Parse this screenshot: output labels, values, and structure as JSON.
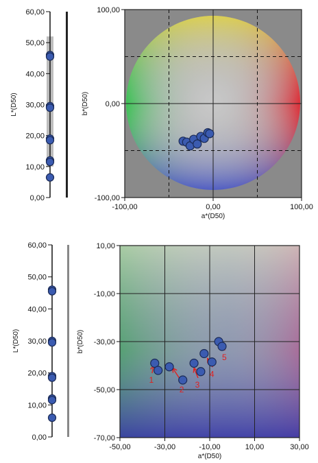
{
  "chart_data": [
    {
      "type": "scatter",
      "panel": "top-lightness-strip",
      "ylabel": "L*(D50)",
      "ylim": [
        0,
        60
      ],
      "y_ticks": [
        "0,00",
        "10,00",
        "20,00",
        "30,00",
        "40,00",
        "50,00",
        "60,00"
      ],
      "y_tick_values": [
        0,
        10,
        20,
        30,
        40,
        50,
        60
      ],
      "points": [
        46,
        45.5,
        29.5,
        29,
        19,
        18.5,
        12,
        11.5,
        6.5
      ],
      "colors": {
        "marker": "#3b5bb0",
        "marker_edge": "#1a2a55",
        "strip": "#bdbdbd"
      }
    },
    {
      "type": "scatter",
      "panel": "top-ab-plane",
      "xlabel": "a*(D50)",
      "ylabel": "b*(D50)",
      "xlim": [
        -100,
        100
      ],
      "ylim": [
        -100,
        100
      ],
      "x_ticks": [
        "-100,00",
        "0,00",
        "100,00"
      ],
      "x_tick_values": [
        -100,
        0,
        100
      ],
      "y_ticks": [
        "-100,00",
        "0,00",
        "100,00"
      ],
      "y_tick_values": [
        -100,
        0,
        100
      ],
      "grid": true,
      "dashed_lines_x": [
        -50,
        50
      ],
      "dashed_lines_y": [
        -50,
        50
      ],
      "points": [
        {
          "x": -34,
          "y": -40
        },
        {
          "x": -30,
          "y": -41
        },
        {
          "x": -26,
          "y": -45
        },
        {
          "x": -22,
          "y": -38
        },
        {
          "x": -18,
          "y": -43
        },
        {
          "x": -14,
          "y": -35
        },
        {
          "x": -10,
          "y": -37
        },
        {
          "x": -6,
          "y": -31
        },
        {
          "x": -4,
          "y": -32
        }
      ],
      "colors": {
        "background": "#8c8c8c",
        "marker": "#3b5bb0"
      }
    },
    {
      "type": "scatter",
      "panel": "bottom-lightness-strip",
      "ylabel": "L*(D50)",
      "ylim": [
        0,
        60
      ],
      "y_ticks": [
        "0,00",
        "10,00",
        "20,00",
        "30,00",
        "40,00",
        "50,00",
        "60,00"
      ],
      "y_tick_values": [
        0,
        10,
        20,
        30,
        40,
        50,
        60
      ],
      "points": [
        46,
        45.5,
        30,
        29.5,
        19,
        18.5,
        12,
        11.5,
        6
      ],
      "colors": {
        "marker": "#3b5bb0"
      }
    },
    {
      "type": "scatter",
      "panel": "bottom-ab-zoom",
      "xlabel": "a*(D50)",
      "ylabel": "b*(D50)",
      "xlim": [
        -50,
        30
      ],
      "ylim": [
        -70,
        10
      ],
      "x_ticks": [
        "-50,00",
        "-30,00",
        "-10,00",
        "10,00",
        "30,00"
      ],
      "x_tick_values": [
        -50,
        -30,
        -10,
        10,
        30
      ],
      "y_ticks": [
        "-70,00",
        "-50,00",
        "-30,00",
        "-10,00",
        "10,00"
      ],
      "y_tick_values": [
        -70,
        -50,
        -30,
        -10,
        10
      ],
      "grid": true,
      "points": [
        {
          "x": -34.5,
          "y": -39
        },
        {
          "x": -33,
          "y": -42
        },
        {
          "x": -28,
          "y": -40.5
        },
        {
          "x": -22,
          "y": -46
        },
        {
          "x": -17,
          "y": -39
        },
        {
          "x": -14,
          "y": -42.5
        },
        {
          "x": -12.5,
          "y": -35
        },
        {
          "x": -9,
          "y": -38.5
        },
        {
          "x": -6,
          "y": -30
        },
        {
          "x": -4.5,
          "y": -32
        }
      ],
      "annotations": [
        {
          "text": "1",
          "x": -36,
          "y": -46,
          "arrow_to": {
            "x": -35,
            "y": -40
          }
        },
        {
          "text": "2",
          "x": -22.5,
          "y": -50,
          "arrow_to": {
            "x": -26.5,
            "y": -41
          }
        },
        {
          "text": "3",
          "x": -15.5,
          "y": -48,
          "arrow_to": {
            "x": -17,
            "y": -41
          }
        },
        {
          "text": "4",
          "x": -9,
          "y": -43.5,
          "arrow_to": {
            "x": -11,
            "y": -37
          }
        },
        {
          "text": "5",
          "x": -3.5,
          "y": -36.5,
          "arrow_to": {
            "x": -5,
            "y": -31
          }
        }
      ],
      "colors": {
        "marker": "#3b5bb0",
        "annotation": "#e02020"
      }
    }
  ]
}
